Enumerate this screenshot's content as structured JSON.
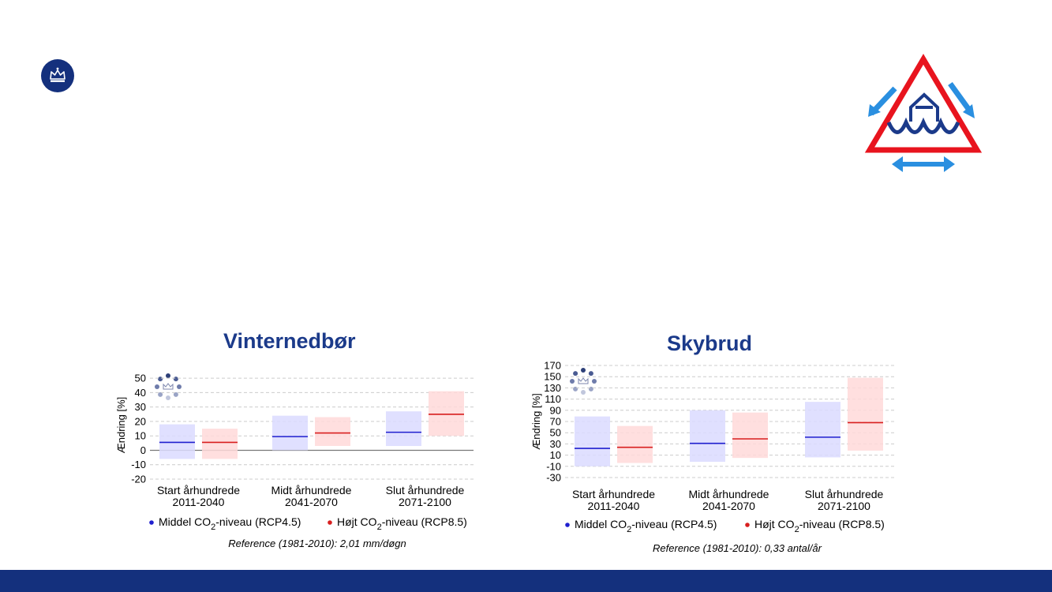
{
  "colors": {
    "accent": "#1b3a8a",
    "footer": "#14307d",
    "blue": "#1f1fcf",
    "red": "#d81f1f",
    "blue_band": "#dadbff",
    "red_band": "#ffd9d9",
    "warning_red": "#e8141e",
    "arrow_blue": "#2a8fe0"
  },
  "icons": {
    "logo": "crown-emblem-icon",
    "warning": "flood-warning-triangle-icon"
  },
  "chart_data": [
    {
      "type": "bar",
      "title": "Vinternedbør",
      "ylabel": "Ændring [%]",
      "ylim": [
        -20,
        55
      ],
      "yticks": [
        50,
        40,
        30,
        20,
        10,
        0,
        -10,
        -20
      ],
      "grid": true,
      "categories": [
        {
          "name": "Start århundrede",
          "period": "2011-2040"
        },
        {
          "name": "Midt århundrede",
          "period": "2041-2070"
        },
        {
          "name": "Slut århundrede",
          "period": "2071-2100"
        }
      ],
      "series": [
        {
          "name": "Middel CO2-niveau (RCP4.5)",
          "legend_prefix": "Middel CO",
          "legend_sub": "2",
          "legend_suffix": "-niveau (RCP4.5)",
          "color": "#1f1fcf",
          "band": "#dadbff",
          "median": [
            5.5,
            9.5,
            12.5
          ],
          "low": [
            -6,
            0,
            3
          ],
          "high": [
            18,
            24,
            27
          ]
        },
        {
          "name": "Højt CO2-niveau (RCP8.5)",
          "legend_prefix": "Højt CO",
          "legend_sub": "2",
          "legend_suffix": "-niveau (RCP8.5)",
          "color": "#d81f1f",
          "band": "#ffd9d9",
          "median": [
            5.5,
            12,
            25
          ],
          "low": [
            -6,
            3,
            10
          ],
          "high": [
            15,
            23,
            41
          ]
        }
      ],
      "reference": "Reference (1981-2010): 2,01 mm/døgn",
      "legend_position": "bottom"
    },
    {
      "type": "bar",
      "title": "Skybrud",
      "ylabel": "Ændring [%]",
      "ylim": [
        -30,
        170
      ],
      "yticks": [
        170,
        150,
        130,
        110,
        90,
        70,
        50,
        30,
        10,
        -10,
        -30
      ],
      "grid": true,
      "categories": [
        {
          "name": "Start århundrede",
          "period": "2011-2040"
        },
        {
          "name": "Midt århundrede",
          "period": "2041-2070"
        },
        {
          "name": "Slut århundrede",
          "period": "2071-2100"
        }
      ],
      "series": [
        {
          "name": "Middel CO2-niveau (RCP4.5)",
          "legend_prefix": "Middel CO",
          "legend_sub": "2",
          "legend_suffix": "-niveau (RCP4.5)",
          "color": "#1f1fcf",
          "band": "#dadbff",
          "median": [
            22,
            31,
            42
          ],
          "low": [
            -10,
            -2,
            6
          ],
          "high": [
            79,
            90,
            105
          ]
        },
        {
          "name": "Højt CO2-niveau (RCP8.5)",
          "legend_prefix": "Højt CO",
          "legend_sub": "2",
          "legend_suffix": "-niveau (RCP8.5)",
          "color": "#d81f1f",
          "band": "#ffd9d9",
          "median": [
            24,
            39,
            68
          ],
          "low": [
            -4,
            5,
            18
          ],
          "high": [
            62,
            86,
            148
          ]
        }
      ],
      "reference": "Reference (1981-2010): 0,33 antal/år",
      "legend_position": "bottom"
    }
  ]
}
